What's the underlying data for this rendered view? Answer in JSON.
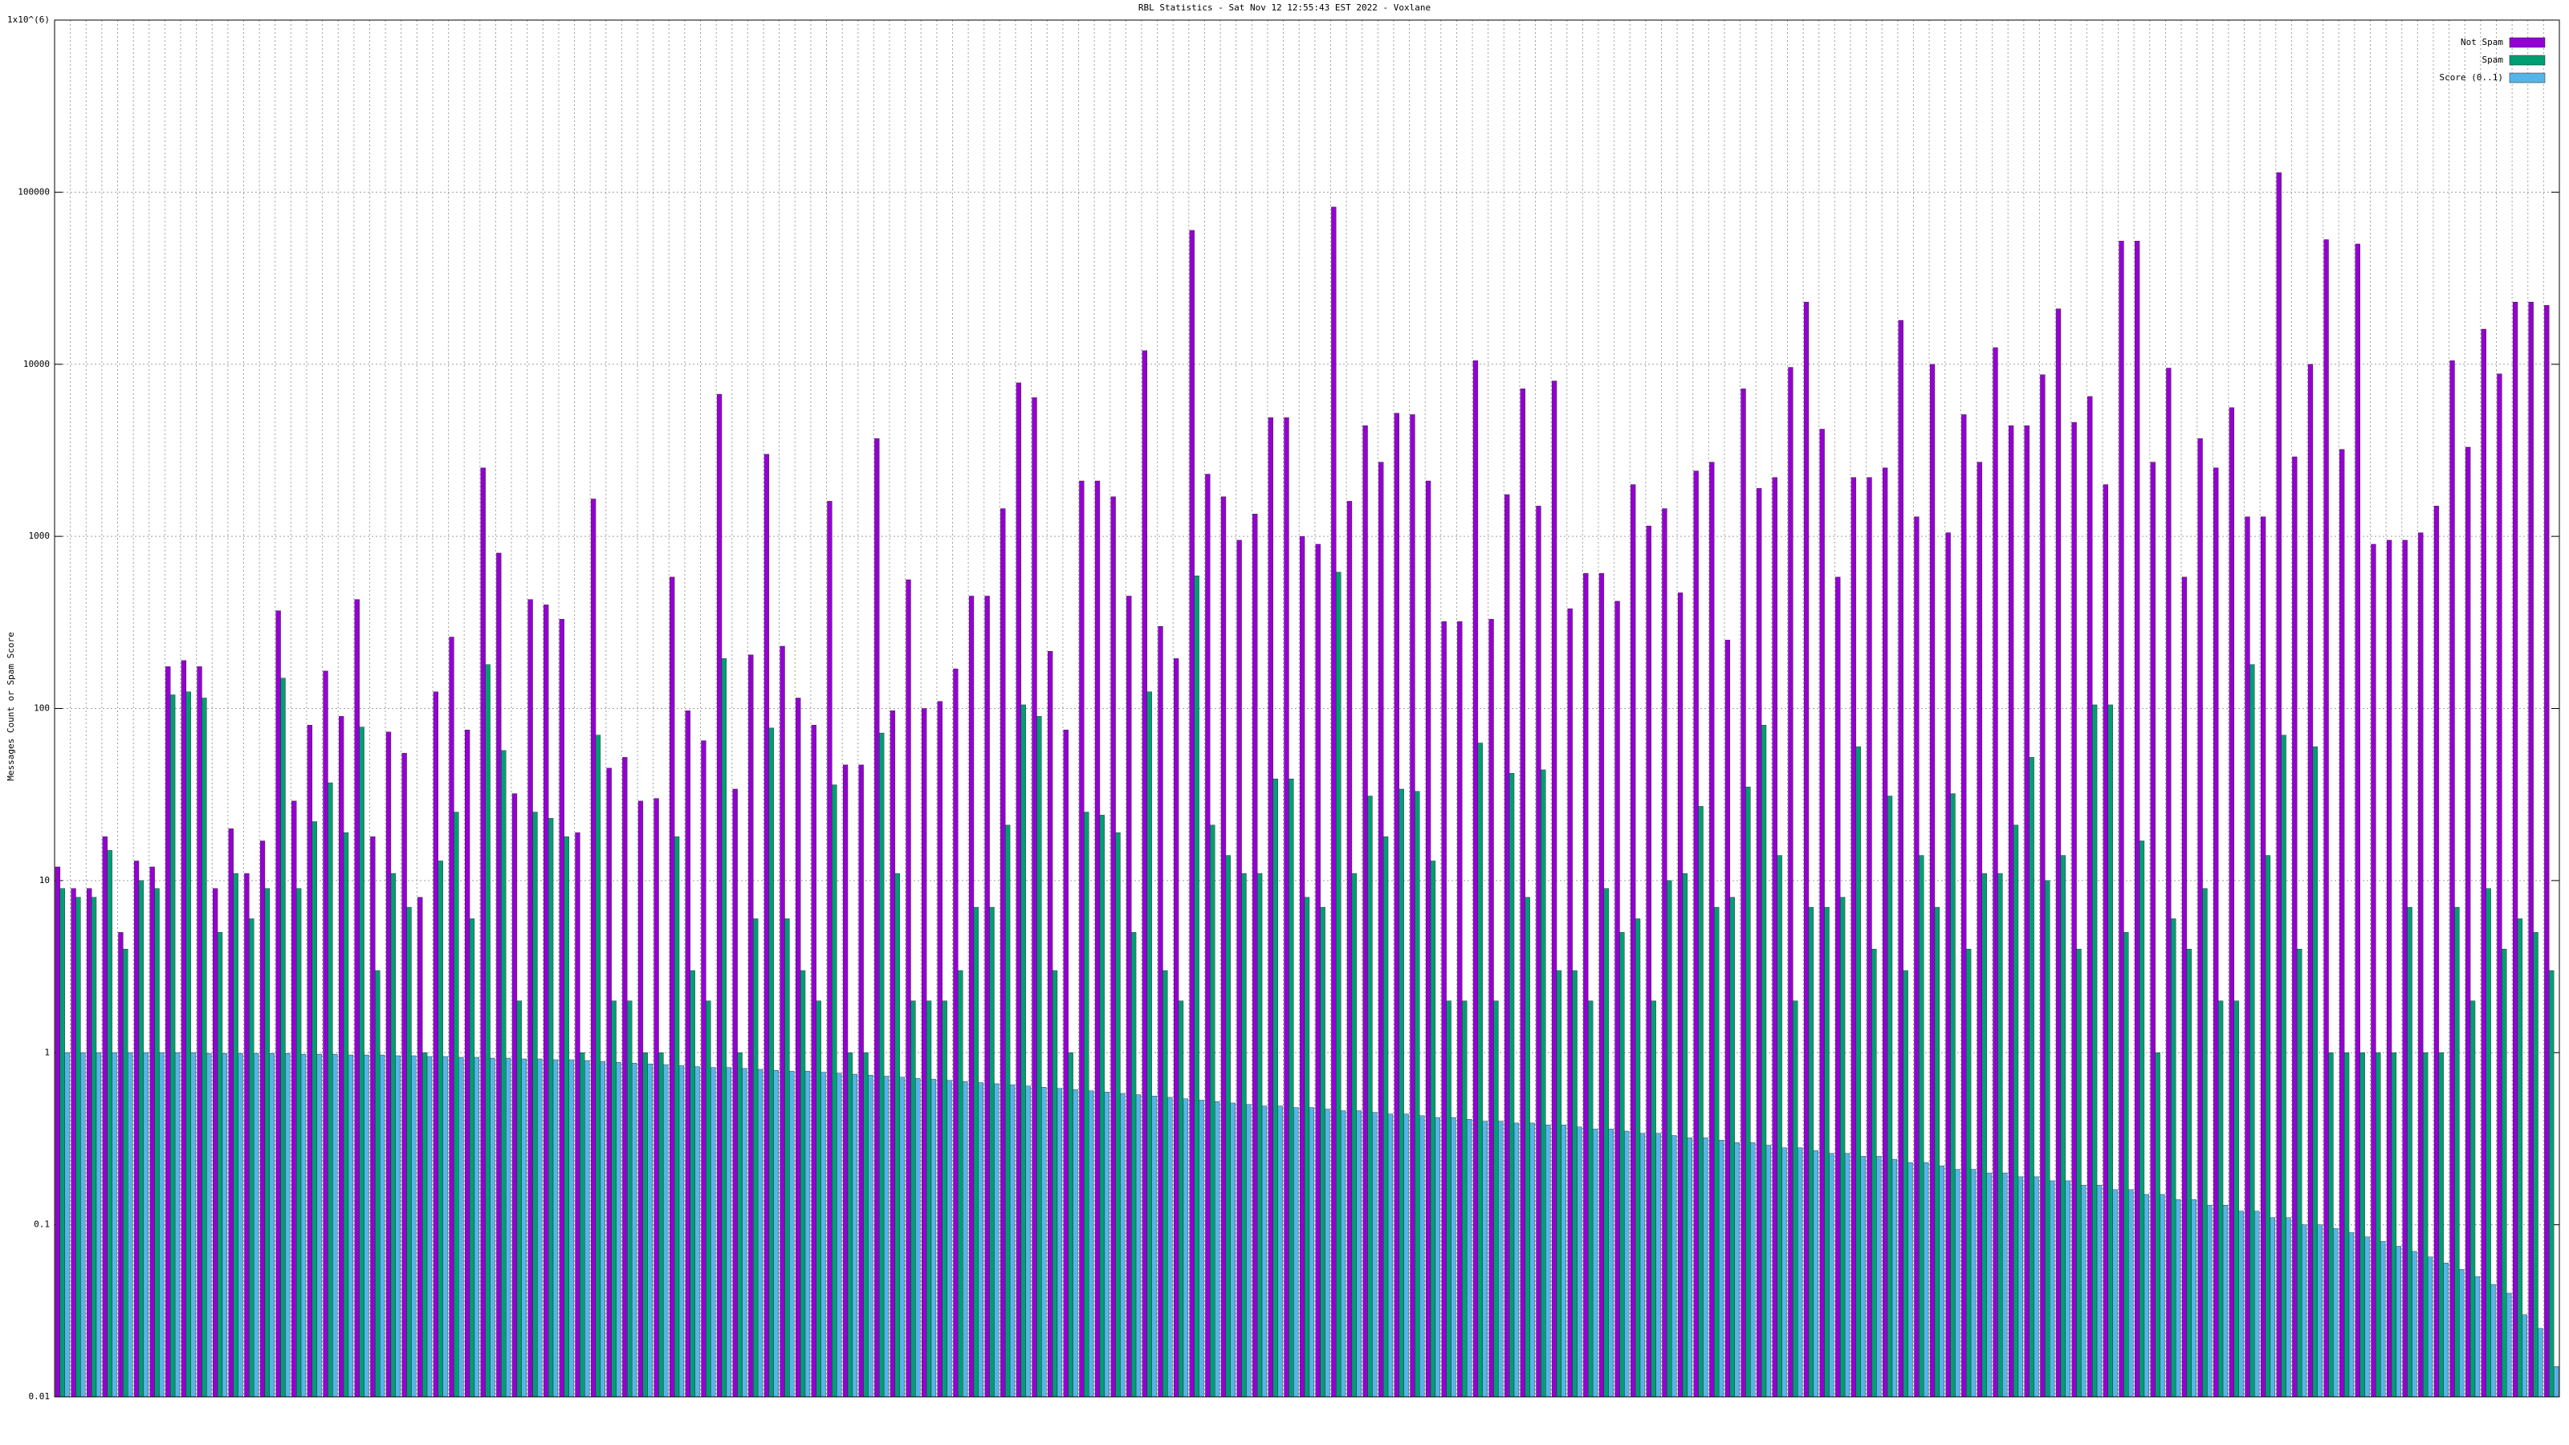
{
  "chart_data": {
    "type": "bar",
    "log_scale": true,
    "grid": true,
    "legend_position": "top-right",
    "title": "RBL Statistics - Sat Nov 12 12:55:43 EST 2022 - Voxlane",
    "y_label": "Messages Count or Spam Score",
    "ylim": [
      0.01,
      1000000
    ],
    "yticks": [
      0.01,
      0.1,
      1,
      10,
      100,
      1000,
      10000,
      100000,
      {
        "value": 1000000,
        "label": "1x10^(6)"
      }
    ],
    "categories": [
      null,
      null,
      null,
      null,
      null,
      null,
      null,
      null,
      null,
      null,
      null,
      null,
      null,
      null,
      null,
      null,
      null,
      null,
      null,
      null,
      null,
      null,
      null,
      null,
      null,
      null,
      null,
      null,
      null,
      null,
      null,
      null,
      null,
      null,
      null,
      null,
      null,
      null,
      null,
      null,
      null,
      null,
      null,
      null,
      null,
      null,
      null,
      null,
      null,
      null,
      null,
      null,
      null,
      null,
      null,
      null,
      null,
      null,
      null,
      null,
      null,
      null,
      null,
      null,
      null,
      null,
      null,
      null,
      null,
      null,
      null,
      null,
      null,
      null,
      null,
      null,
      null,
      null,
      null,
      null,
      null,
      null,
      null,
      null,
      null,
      null,
      null,
      null,
      null,
      null,
      null,
      null,
      null,
      null,
      null,
      null,
      null,
      null,
      null,
      null,
      null,
      null,
      null,
      null,
      null,
      null,
      null,
      null,
      null,
      null,
      null,
      null,
      null,
      null,
      null,
      null,
      null,
      null,
      null,
      null,
      null,
      null,
      null,
      null,
      null,
      null,
      null,
      null,
      null,
      null,
      null,
      null,
      null,
      null,
      null,
      null,
      null,
      null,
      null,
      null,
      null,
      null,
      null,
      null,
      null,
      null,
      null,
      null,
      null,
      null,
      null,
      null,
      null,
      null,
      null,
      null,
      null,
      null,
      null
    ],
    "series": [
      {
        "name": "Not Spam",
        "color": "#9400d3",
        "values": [
          12,
          9,
          9,
          18,
          5,
          13,
          12,
          175,
          190,
          175,
          9,
          20,
          11,
          17,
          370,
          29,
          80,
          165,
          90,
          430,
          18,
          73,
          55,
          8,
          125,
          260,
          75,
          2500,
          800,
          32,
          430,
          400,
          330,
          19,
          1650,
          45,
          52,
          29,
          30,
          580,
          97,
          65,
          6700,
          34,
          205,
          3000,
          230,
          115,
          80,
          1600,
          47,
          47,
          3700,
          97,
          560,
          100,
          110,
          170,
          450,
          450,
          1450,
          7800,
          6400,
          215,
          75,
          2100,
          2100,
          1700,
          450,
          12000,
          300,
          195,
          60000,
          2300,
          1700,
          950,
          1350,
          4900,
          4900,
          1000,
          900,
          82000,
          1600,
          4400,
          2700,
          5200,
          5100,
          2100,
          320,
          320,
          10500,
          330,
          1750,
          7200,
          1500,
          8000,
          380,
          610,
          610,
          420,
          2000,
          1150,
          1450,
          470,
          2400,
          2700,
          250,
          7200,
          1900,
          2200,
          9600,
          23000,
          4200,
          580,
          2200,
          2200,
          2500,
          18000,
          1300,
          10000,
          1050,
          5100,
          2700,
          12500,
          4400,
          4400,
          8700,
          21000,
          4600,
          6500,
          2000,
          52000,
          52000,
          2700,
          9500,
          580,
          3700,
          2500,
          5600,
          1300,
          1300,
          130000,
          2900,
          10000,
          53000,
          3200,
          50000,
          900,
          950,
          950,
          1050,
          1500,
          10500,
          3300,
          16000,
          8800,
          23000,
          23000,
          22000
        ]
      },
      {
        "name": "Spam",
        "color": "#009e73",
        "values": [
          9,
          8,
          8,
          15,
          4,
          10,
          9,
          120,
          125,
          115,
          5,
          11,
          6,
          9,
          150,
          9,
          22,
          37,
          19,
          78,
          3,
          11,
          7,
          1,
          13,
          25,
          6,
          180,
          57,
          2,
          25,
          23,
          18,
          1,
          70,
          2,
          2,
          1,
          1,
          18,
          3,
          2,
          195,
          1,
          6,
          77,
          6,
          3,
          2,
          36,
          1,
          1,
          72,
          11,
          2,
          2,
          2,
          3,
          7,
          7,
          21,
          105,
          90,
          3,
          1,
          25,
          24,
          19,
          5,
          125,
          3,
          2,
          590,
          21,
          14,
          11,
          11,
          39,
          39,
          8,
          7,
          620,
          11,
          31,
          18,
          34,
          33,
          13,
          2,
          2,
          63,
          2,
          42,
          8,
          44,
          3,
          3,
          2,
          9,
          5,
          6,
          2,
          10,
          11,
          27,
          7,
          8,
          35,
          80,
          14,
          2,
          7,
          7,
          8,
          60,
          4,
          31,
          3,
          14,
          7,
          32,
          4,
          11,
          11,
          21,
          52,
          10,
          14,
          4,
          105,
          105,
          5,
          17,
          1,
          6,
          4,
          9,
          2,
          2,
          180,
          14,
          70,
          4,
          60,
          1,
          1,
          1,
          1,
          1,
          7,
          1,
          1,
          7,
          2,
          9,
          4,
          6,
          5,
          3
        ]
      },
      {
        "name": "Score (0..1)",
        "color": "#56b4e9",
        "values": [
          1,
          1,
          1,
          1,
          1,
          1,
          1,
          1,
          1,
          0.99,
          0.99,
          0.99,
          0.99,
          0.99,
          0.99,
          0.98,
          0.98,
          0.98,
          0.97,
          0.97,
          0.97,
          0.96,
          0.96,
          0.95,
          0.95,
          0.94,
          0.94,
          0.93,
          0.93,
          0.92,
          0.92,
          0.91,
          0.91,
          0.9,
          0.89,
          0.88,
          0.87,
          0.86,
          0.85,
          0.84,
          0.83,
          0.82,
          0.82,
          0.81,
          0.8,
          0.79,
          0.78,
          0.78,
          0.77,
          0.76,
          0.75,
          0.74,
          0.73,
          0.72,
          0.71,
          0.7,
          0.69,
          0.68,
          0.67,
          0.66,
          0.65,
          0.64,
          0.63,
          0.62,
          0.61,
          0.6,
          0.59,
          0.58,
          0.57,
          0.56,
          0.55,
          0.54,
          0.53,
          0.52,
          0.51,
          0.5,
          0.49,
          0.49,
          0.48,
          0.48,
          0.47,
          0.46,
          0.46,
          0.45,
          0.44,
          0.44,
          0.43,
          0.42,
          0.42,
          0.41,
          0.4,
          0.4,
          0.39,
          0.39,
          0.38,
          0.38,
          0.37,
          0.36,
          0.36,
          0.35,
          0.34,
          0.34,
          0.33,
          0.32,
          0.32,
          0.31,
          0.3,
          0.3,
          0.29,
          0.28,
          0.28,
          0.27,
          0.26,
          0.26,
          0.25,
          0.25,
          0.24,
          0.23,
          0.23,
          0.22,
          0.21,
          0.21,
          0.2,
          0.2,
          0.19,
          0.19,
          0.18,
          0.18,
          0.17,
          0.17,
          0.16,
          0.16,
          0.15,
          0.15,
          0.14,
          0.14,
          0.13,
          0.13,
          0.12,
          0.12,
          0.11,
          0.11,
          0.1,
          0.1,
          0.095,
          0.09,
          0.085,
          0.08,
          0.075,
          0.07,
          0.065,
          0.06,
          0.055,
          0.05,
          0.045,
          0.04,
          0.03,
          0.025,
          0.015
        ]
      }
    ]
  }
}
